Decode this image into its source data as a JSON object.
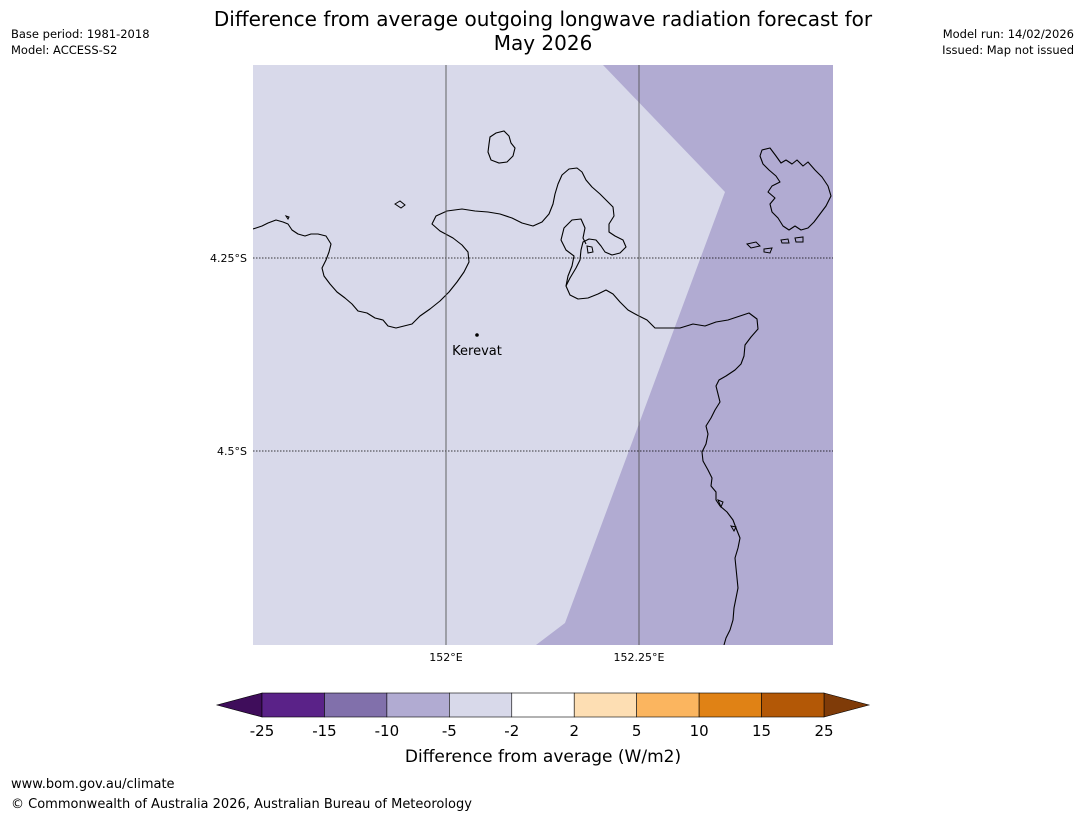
{
  "header": {
    "title_line1": "Difference from average outgoing longwave radiation forecast for",
    "title_line2": "May 2026",
    "base_period": "Base period: 1981-2018",
    "model": "Model: ACCESS-S2",
    "model_run": "Model run: 14/02/2026",
    "issued": "Issued: Map not issued"
  },
  "map": {
    "lat_labels": [
      "4.25°S",
      "4.5°S"
    ],
    "lon_labels": [
      "152°E",
      "152.25°E"
    ],
    "places": [
      {
        "name": "Kerevat"
      }
    ],
    "region_colors": {
      "minus2_to_minus5": "#d8d9ea",
      "minus5_to_minus10": "#b1abd2"
    }
  },
  "colorbar": {
    "ticks": [
      "-25",
      "-15",
      "-10",
      "-5",
      "-2",
      "2",
      "5",
      "10",
      "15",
      "25"
    ],
    "colors": [
      "#3f0d5b",
      "#5a2288",
      "#8170ab",
      "#b1abd2",
      "#d8d9ea",
      "#ffffff",
      "#fddeb3",
      "#fbb55f",
      "#e08215",
      "#b35806",
      "#7f3b08"
    ],
    "label": "Difference from average (W/m2)"
  },
  "footer": {
    "url": "www.bom.gov.au/climate",
    "copyright": "© Commonwealth of Australia 2026, Australian Bureau of Meteorology"
  }
}
